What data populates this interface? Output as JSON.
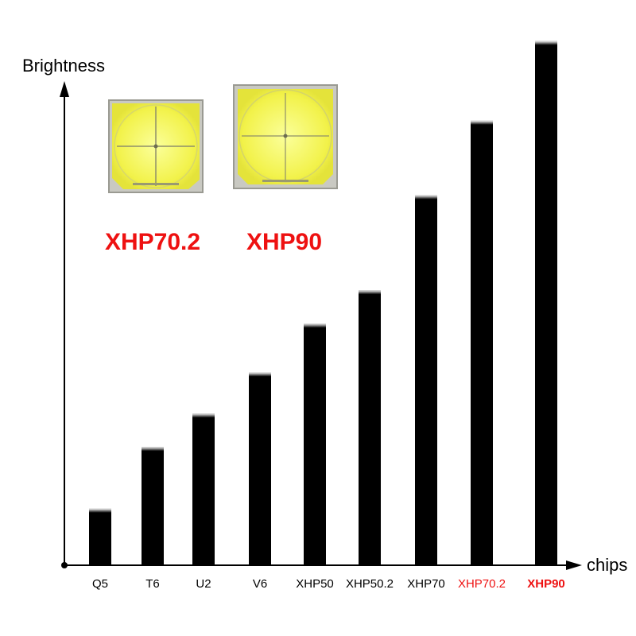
{
  "chart_data": {
    "type": "bar",
    "xlabel": "chips",
    "ylabel": "Brightness",
    "categories": [
      "Q5",
      "T6",
      "U2",
      "V6",
      "XHP50",
      "XHP50.2",
      "XHP70",
      "XHP70.2",
      "XHP90"
    ],
    "values": [
      11,
      23,
      29.5,
      37.5,
      47,
      53.5,
      72,
      86.5,
      102
    ],
    "ylim": [
      0,
      110
    ],
    "highlighted_categories": [
      "XHP70.2",
      "XHP90"
    ],
    "bold_categories": [
      "XHP90"
    ],
    "grid": false,
    "bar_color": "#000000",
    "highlight_color": "#ee1111"
  },
  "chips": [
    {
      "label": "XHP70.2",
      "icon": "led-chip-4-die-icon"
    },
    {
      "label": "XHP90",
      "icon": "led-chip-dome-icon"
    }
  ]
}
